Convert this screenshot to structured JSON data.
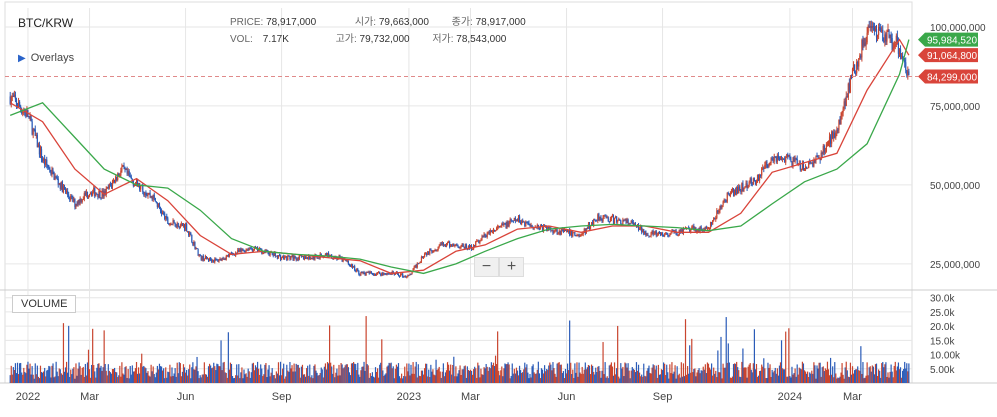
{
  "symbol": "BTC/KRW",
  "overlays_label": "Overlays",
  "ohlc": {
    "price_label": "PRICE:",
    "price": "78,917,000",
    "open_label": "시가:",
    "open": "79,663,000",
    "close_label": "종가:",
    "close": "78,917,000",
    "vol_label": "VOL:",
    "vol": "7.17K",
    "high_label": "고가:",
    "high": "79,732,000",
    "low_label": "저가:",
    "low": "78,543,000"
  },
  "zoom": {
    "minus": "−",
    "plus": "+"
  },
  "volume_label": "VOLUME",
  "colors": {
    "up": "#c9452f",
    "down": "#2a5bb8",
    "ma_short": "#d9443a",
    "ma_long": "#3aa84a",
    "grid": "#e6e6e6",
    "axis_text": "#444"
  },
  "chart_data": {
    "type": "line",
    "title": "BTC/KRW",
    "x_ticks": [
      "2022",
      "Mar",
      "Jun",
      "Sep",
      "2023",
      "Mar",
      "Jun",
      "Sep",
      "2024",
      "Mar"
    ],
    "price_ticks": [
      "100,000,000",
      "75,000,000",
      "50,000,000",
      "25,000,000"
    ],
    "volume_ticks": [
      "30.0k",
      "25.0k",
      "20.0k",
      "15.0k",
      "10.00k",
      "5.00k"
    ],
    "price_range": [
      18000000,
      106000000
    ],
    "volume_range": [
      0,
      32000
    ],
    "price_ticks_values": [
      100000000,
      75000000,
      50000000,
      25000000
    ],
    "volume_ticks_values": [
      30000,
      25000,
      20000,
      15000,
      10000,
      5000
    ],
    "price_labels": [
      {
        "text": "95,984,520",
        "value": 95984520,
        "color": "#3aa84a"
      },
      {
        "text": "91,064,800",
        "value": 91064800,
        "color": "#d9443a"
      },
      {
        "text": "84,299,000",
        "value": 84299000,
        "color": "#d9443a"
      }
    ],
    "last_price": 84299000,
    "series": [
      {
        "key": "price",
        "style": "candles",
        "x": [
          "2021-12-15",
          "2022-01-01",
          "2022-01-15",
          "2022-02-01",
          "2022-02-15",
          "2022-03-01",
          "2022-03-15",
          "2022-04-01",
          "2022-04-15",
          "2022-05-01",
          "2022-05-15",
          "2022-06-01",
          "2022-06-15",
          "2022-07-01",
          "2022-07-15",
          "2022-08-01",
          "2022-08-15",
          "2022-09-01",
          "2022-09-15",
          "2022-10-01",
          "2022-10-15",
          "2022-11-01",
          "2022-11-15",
          "2022-12-01",
          "2022-12-15",
          "2023-01-01",
          "2023-01-15",
          "2023-02-01",
          "2023-02-15",
          "2023-03-01",
          "2023-03-15",
          "2023-04-01",
          "2023-04-15",
          "2023-05-01",
          "2023-05-15",
          "2023-06-01",
          "2023-06-15",
          "2023-07-01",
          "2023-07-15",
          "2023-08-01",
          "2023-08-15",
          "2023-09-01",
          "2023-09-15",
          "2023-10-01",
          "2023-10-15",
          "2023-11-01",
          "2023-11-15",
          "2023-12-01",
          "2023-12-15",
          "2024-01-01",
          "2024-01-15",
          "2024-02-01",
          "2024-02-15",
          "2024-03-01",
          "2024-03-15",
          "2024-04-01",
          "2024-04-15",
          "2024-04-24"
        ],
        "values": [
          78000000,
          72000000,
          58000000,
          50000000,
          44000000,
          48000000,
          47000000,
          55000000,
          50000000,
          46000000,
          38000000,
          37000000,
          27000000,
          26000000,
          28000000,
          30000000,
          29000000,
          27000000,
          27000000,
          27000000,
          28000000,
          26000000,
          22000000,
          22000000,
          22000000,
          21000000,
          28000000,
          31000000,
          31000000,
          30000000,
          34000000,
          37000000,
          39000000,
          37000000,
          36000000,
          35000000,
          34000000,
          40000000,
          39000000,
          38000000,
          35000000,
          34000000,
          35000000,
          36000000,
          36000000,
          46000000,
          49000000,
          52000000,
          59000000,
          58000000,
          55000000,
          60000000,
          68000000,
          85000000,
          98000000,
          97000000,
          94000000,
          84299000
        ]
      },
      {
        "key": "ma_short",
        "name": "",
        "x": [
          "2021-12-15",
          "2022-01-15",
          "2022-02-15",
          "2022-03-15",
          "2022-04-15",
          "2022-05-15",
          "2022-06-15",
          "2022-07-15",
          "2022-08-15",
          "2022-09-15",
          "2022-10-15",
          "2022-11-15",
          "2022-12-15",
          "2023-01-15",
          "2023-02-15",
          "2023-03-15",
          "2023-04-15",
          "2023-05-15",
          "2023-06-15",
          "2023-07-15",
          "2023-08-15",
          "2023-09-15",
          "2023-10-15",
          "2023-11-15",
          "2023-12-15",
          "2024-01-15",
          "2024-02-15",
          "2024-03-15",
          "2024-04-15",
          "2024-04-24"
        ],
        "values": [
          76000000,
          70000000,
          55000000,
          47000000,
          52000000,
          45000000,
          34000000,
          28000000,
          29000000,
          28000000,
          27000000,
          26000000,
          22000000,
          23000000,
          29000000,
          31000000,
          36000000,
          37000000,
          35000000,
          37000000,
          37000000,
          35000000,
          35000000,
          41000000,
          54000000,
          57000000,
          60000000,
          80000000,
          96000000,
          91064800
        ]
      },
      {
        "key": "ma_long",
        "name": "",
        "x": [
          "2021-12-15",
          "2022-01-15",
          "2022-02-15",
          "2022-03-15",
          "2022-04-15",
          "2022-05-15",
          "2022-06-15",
          "2022-07-15",
          "2022-08-15",
          "2022-09-15",
          "2022-10-15",
          "2022-11-15",
          "2022-12-15",
          "2023-01-15",
          "2023-02-15",
          "2023-03-15",
          "2023-04-15",
          "2023-05-15",
          "2023-06-15",
          "2023-07-15",
          "2023-08-15",
          "2023-09-15",
          "2023-10-15",
          "2023-11-15",
          "2023-12-15",
          "2024-01-15",
          "2024-02-15",
          "2024-03-15",
          "2024-04-15",
          "2024-04-24"
        ],
        "values": [
          72000000,
          76000000,
          65000000,
          55000000,
          50000000,
          49000000,
          42000000,
          33000000,
          29000000,
          28000000,
          27500000,
          26500000,
          24000000,
          22000000,
          25000000,
          29000000,
          33000000,
          36000000,
          37000000,
          37500000,
          37000000,
          36500000,
          35500000,
          37000000,
          44000000,
          51000000,
          55000000,
          63000000,
          85000000,
          95984520
        ]
      }
    ]
  }
}
